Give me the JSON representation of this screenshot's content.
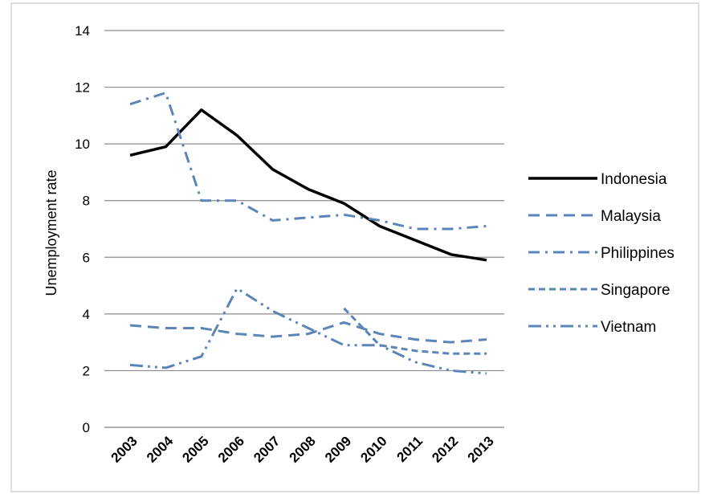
{
  "chart_data": {
    "type": "line",
    "title": "",
    "xlabel": "",
    "ylabel": "Unemployment rate",
    "x": [
      "2003",
      "2004",
      "2005",
      "2006",
      "2007",
      "2008",
      "2009",
      "2010",
      "2011",
      "2012",
      "2013"
    ],
    "ylim": [
      0,
      14
    ],
    "yticks": [
      "0",
      "2",
      "4",
      "6",
      "8",
      "10",
      "12",
      "14"
    ],
    "grid": "horizontal",
    "legend": "right",
    "series": [
      {
        "name": "Indonesia",
        "color": "#000000",
        "style": "solid",
        "values": [
          9.6,
          9.9,
          11.2,
          10.3,
          9.1,
          8.4,
          7.9,
          7.1,
          6.6,
          6.1,
          5.9
        ]
      },
      {
        "name": "Malaysia",
        "color": "#5b84b8",
        "style": "long-dash",
        "values": [
          3.6,
          3.5,
          3.5,
          3.3,
          3.2,
          3.3,
          3.7,
          3.3,
          3.1,
          3.0,
          3.1
        ]
      },
      {
        "name": "Philippines",
        "color": "#5b84b8",
        "style": "dash-dot",
        "values": [
          11.4,
          11.8,
          8.0,
          8.0,
          7.3,
          7.4,
          7.5,
          7.3,
          7.0,
          7.0,
          7.1
        ]
      },
      {
        "name": "Singapore",
        "color": "#5b84b8",
        "style": "short-dash",
        "values": [
          null,
          null,
          null,
          null,
          null,
          null,
          4.2,
          2.9,
          2.7,
          2.6,
          2.6
        ]
      },
      {
        "name": "Vietnam",
        "color": "#5b84b8",
        "style": "long-dash-dot-dot",
        "values": [
          2.2,
          2.1,
          2.5,
          4.9,
          4.1,
          3.5,
          2.9,
          2.9,
          2.3,
          2.0,
          1.9
        ]
      }
    ]
  }
}
